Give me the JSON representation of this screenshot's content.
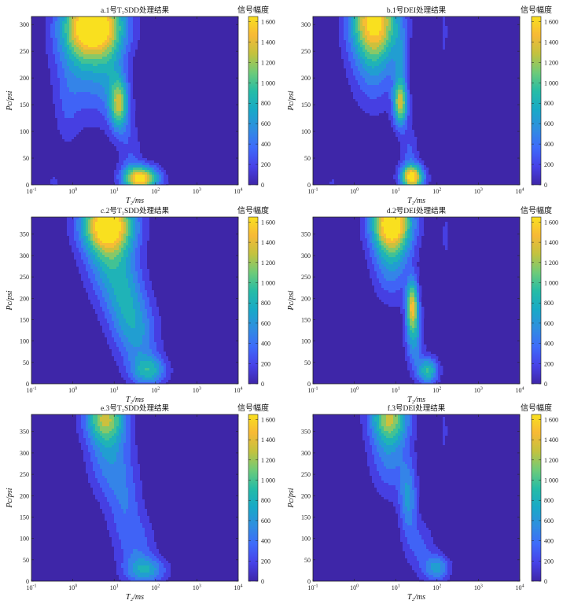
{
  "colorbar": {
    "title": "信号幅度",
    "ticks": [
      0,
      200,
      400,
      600,
      800,
      1000,
      1200,
      1400,
      1600
    ],
    "tick_labels": [
      "0",
      "200",
      "400",
      "600",
      "800",
      "1 000",
      "1 200",
      "1 400",
      "1 600"
    ],
    "range": [
      0,
      1650
    ],
    "colormap": "parula",
    "colors": [
      "#3e26a8",
      "#4742e8",
      "#3e6bfa",
      "#2f8ee0",
      "#18a9c7",
      "#25bca6",
      "#6ecb79",
      "#c2c23f",
      "#f7b936",
      "#f9e01f"
    ]
  },
  "chart_data": [
    {
      "type": "heatmap",
      "id": "a",
      "title": "a.1号T₁SDD处理结果",
      "xlabel": "T₂/ms",
      "ylabel": "Pc/psi",
      "xscale": "log",
      "xlim": [
        0.1,
        10000
      ],
      "ylim": [
        0,
        315
      ],
      "yticks": [
        0,
        50,
        100,
        150,
        200,
        250,
        300
      ],
      "blobs": [
        {
          "x": 3.5,
          "y": 300,
          "sx": 0.5,
          "sy": 40,
          "amp": 1650
        },
        {
          "x": 1.6,
          "y": 250,
          "sx": 0.45,
          "sy": 80,
          "amp": 700
        },
        {
          "x": 13,
          "y": 150,
          "sx": 0.16,
          "sy": 35,
          "amp": 1150
        },
        {
          "x": 8,
          "y": 210,
          "sx": 0.3,
          "sy": 60,
          "amp": 450
        },
        {
          "x": 0.7,
          "y": 130,
          "sx": 0.2,
          "sy": 50,
          "amp": 180
        },
        {
          "x": 45,
          "y": 12,
          "sx": 0.3,
          "sy": 16,
          "amp": 1700
        },
        {
          "x": 25,
          "y": 55,
          "sx": 0.2,
          "sy": 50,
          "amp": 300
        },
        {
          "x": 0.35,
          "y": 5,
          "sx": 0.1,
          "sy": 8,
          "amp": 250
        }
      ]
    },
    {
      "type": "heatmap",
      "id": "b",
      "title": "b.1号DEI处理结果",
      "xlabel": "T₂/ms",
      "ylabel": "Pc/psi",
      "xscale": "log",
      "xlim": [
        0.1,
        10000
      ],
      "ylim": [
        0,
        315
      ],
      "yticks": [
        0,
        50,
        100,
        150,
        200,
        250,
        300
      ],
      "blobs": [
        {
          "x": 3,
          "y": 310,
          "sx": 0.4,
          "sy": 50,
          "amp": 1650
        },
        {
          "x": 3,
          "y": 220,
          "sx": 0.4,
          "sy": 60,
          "amp": 500
        },
        {
          "x": 13,
          "y": 150,
          "sx": 0.12,
          "sy": 28,
          "amp": 1100
        },
        {
          "x": 13,
          "y": 210,
          "sx": 0.12,
          "sy": 60,
          "amp": 450
        },
        {
          "x": 25,
          "y": 14,
          "sx": 0.2,
          "sy": 16,
          "amp": 1700
        },
        {
          "x": 22,
          "y": 60,
          "sx": 0.15,
          "sy": 35,
          "amp": 350
        },
        {
          "x": 150,
          "y": 285,
          "sx": 0.06,
          "sy": 40,
          "amp": 230
        },
        {
          "x": 0.3,
          "y": 5,
          "sx": 0.1,
          "sy": 8,
          "amp": 200
        }
      ]
    },
    {
      "type": "heatmap",
      "id": "c",
      "title": "c.2号T₁SDD处理结果",
      "xlabel": "T₂/ms",
      "ylabel": "Pc/psi",
      "xscale": "log",
      "xlim": [
        0.1,
        10000
      ],
      "ylim": [
        0,
        390
      ],
      "yticks": [
        0,
        50,
        100,
        150,
        200,
        250,
        300,
        350
      ],
      "blobs": [
        {
          "x": 7,
          "y": 375,
          "sx": 0.45,
          "sy": 45,
          "amp": 1650
        },
        {
          "x": 7,
          "y": 300,
          "sx": 0.4,
          "sy": 70,
          "amp": 700
        },
        {
          "x": 18,
          "y": 200,
          "sx": 0.35,
          "sy": 70,
          "amp": 650
        },
        {
          "x": 40,
          "y": 110,
          "sx": 0.35,
          "sy": 60,
          "amp": 550
        },
        {
          "x": 70,
          "y": 30,
          "sx": 0.3,
          "sy": 25,
          "amp": 800
        }
      ]
    },
    {
      "type": "heatmap",
      "id": "d",
      "title": "d.2号DEI处理结果",
      "xlabel": "T₂/ms",
      "ylabel": "Pc/psi",
      "xscale": "log",
      "xlim": [
        0.1,
        10000
      ],
      "ylim": [
        0,
        390
      ],
      "yticks": [
        0,
        50,
        100,
        150,
        200,
        250,
        300,
        350
      ],
      "blobs": [
        {
          "x": 8,
          "y": 380,
          "sx": 0.35,
          "sy": 45,
          "amp": 1650
        },
        {
          "x": 8,
          "y": 300,
          "sx": 0.33,
          "sy": 70,
          "amp": 700
        },
        {
          "x": 25,
          "y": 185,
          "sx": 0.1,
          "sy": 40,
          "amp": 1300
        },
        {
          "x": 28,
          "y": 110,
          "sx": 0.15,
          "sy": 50,
          "amp": 700
        },
        {
          "x": 60,
          "y": 30,
          "sx": 0.18,
          "sy": 22,
          "amp": 1000
        },
        {
          "x": 160,
          "y": 345,
          "sx": 0.06,
          "sy": 45,
          "amp": 230
        }
      ]
    },
    {
      "type": "heatmap",
      "id": "e",
      "title": "e.3号T₁SDD处理结果",
      "xlabel": "T₂/ms",
      "ylabel": "Pc/psi",
      "xscale": "log",
      "xlim": [
        0.1,
        10000
      ],
      "ylim": [
        0,
        390
      ],
      "yticks": [
        0,
        50,
        100,
        150,
        200,
        250,
        300,
        350
      ],
      "blobs": [
        {
          "x": 6,
          "y": 385,
          "sx": 0.35,
          "sy": 40,
          "amp": 1100
        },
        {
          "x": 7,
          "y": 300,
          "sx": 0.35,
          "sy": 70,
          "amp": 580
        },
        {
          "x": 18,
          "y": 180,
          "sx": 0.3,
          "sy": 80,
          "amp": 420
        },
        {
          "x": 60,
          "y": 25,
          "sx": 0.35,
          "sy": 22,
          "amp": 700
        },
        {
          "x": 40,
          "y": 80,
          "sx": 0.3,
          "sy": 50,
          "amp": 350
        }
      ]
    },
    {
      "type": "heatmap",
      "id": "f",
      "title": "f.3号DEI处理结果",
      "xlabel": "T₂/ms",
      "ylabel": "Pc/psi",
      "xscale": "log",
      "xlim": [
        0.1,
        10000
      ],
      "ylim": [
        0,
        390
      ],
      "yticks": [
        0,
        50,
        100,
        150,
        200,
        250,
        300,
        350
      ],
      "blobs": [
        {
          "x": 7,
          "y": 385,
          "sx": 0.33,
          "sy": 40,
          "amp": 1100
        },
        {
          "x": 7,
          "y": 300,
          "sx": 0.33,
          "sy": 70,
          "amp": 560
        },
        {
          "x": 20,
          "y": 190,
          "sx": 0.15,
          "sy": 60,
          "amp": 650
        },
        {
          "x": 100,
          "y": 30,
          "sx": 0.22,
          "sy": 22,
          "amp": 700
        },
        {
          "x": 150,
          "y": 350,
          "sx": 0.06,
          "sy": 40,
          "amp": 230
        },
        {
          "x": 40,
          "y": 80,
          "sx": 0.25,
          "sy": 45,
          "amp": 350
        }
      ]
    }
  ]
}
